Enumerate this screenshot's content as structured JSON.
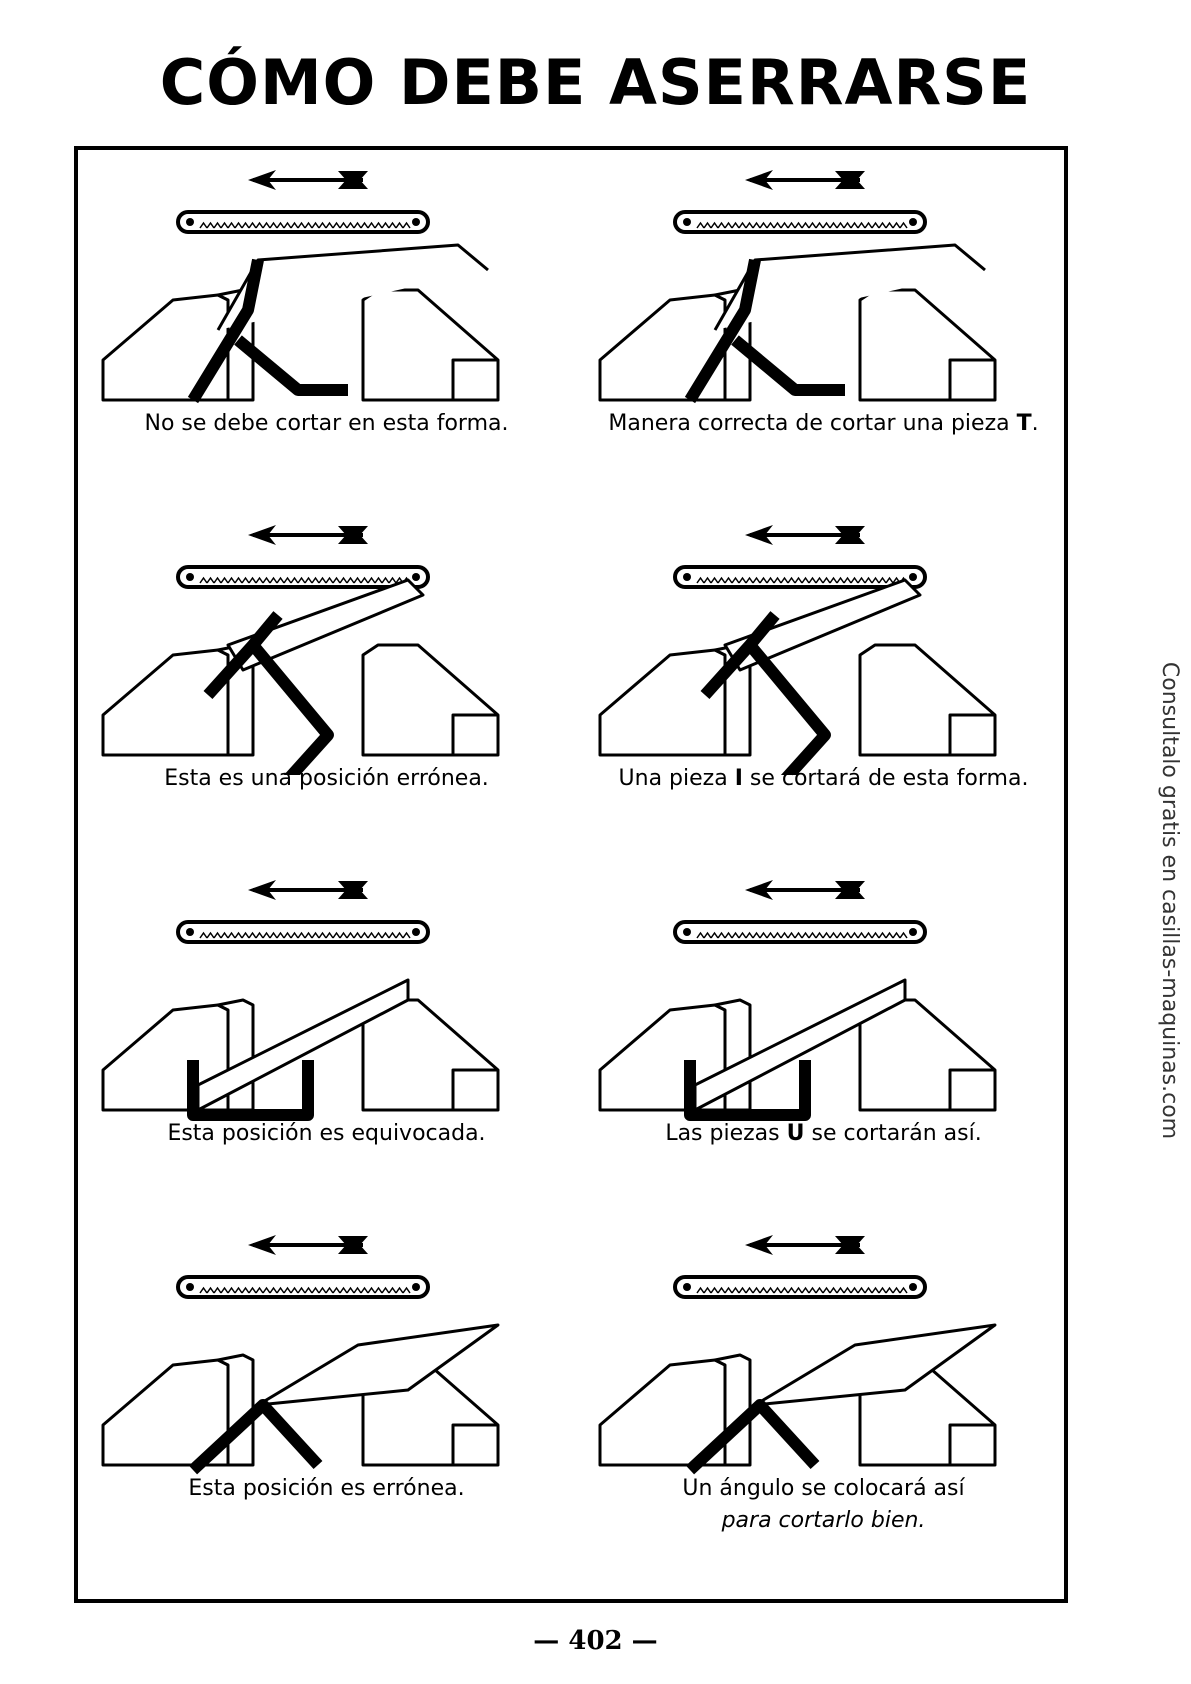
{
  "title": "CÓMO DEBE ASERRARSE",
  "panels": [
    {
      "caption": "No se debe cortar en esta forma."
    },
    {
      "caption_pre": "Manera correcta de cortar una pieza ",
      "caption_bold": "T",
      "caption_post": "."
    },
    {
      "caption": "Esta es una posición errónea."
    },
    {
      "caption_pre": "Una pieza ",
      "caption_bold": "I",
      "caption_post": " se cortará de esta forma."
    },
    {
      "caption": "Esta posición es equivocada."
    },
    {
      "caption_pre": "Las piezas ",
      "caption_bold": "U",
      "caption_post": " se cortarán así."
    },
    {
      "caption": "Esta posición es errónea."
    },
    {
      "caption_line1": "Un ángulo se colocará así",
      "caption_line2": "para cortarlo bien."
    }
  ],
  "side_text": "Consultalo gratis en casillas-maquinas.com",
  "page_number": "— 402 —"
}
